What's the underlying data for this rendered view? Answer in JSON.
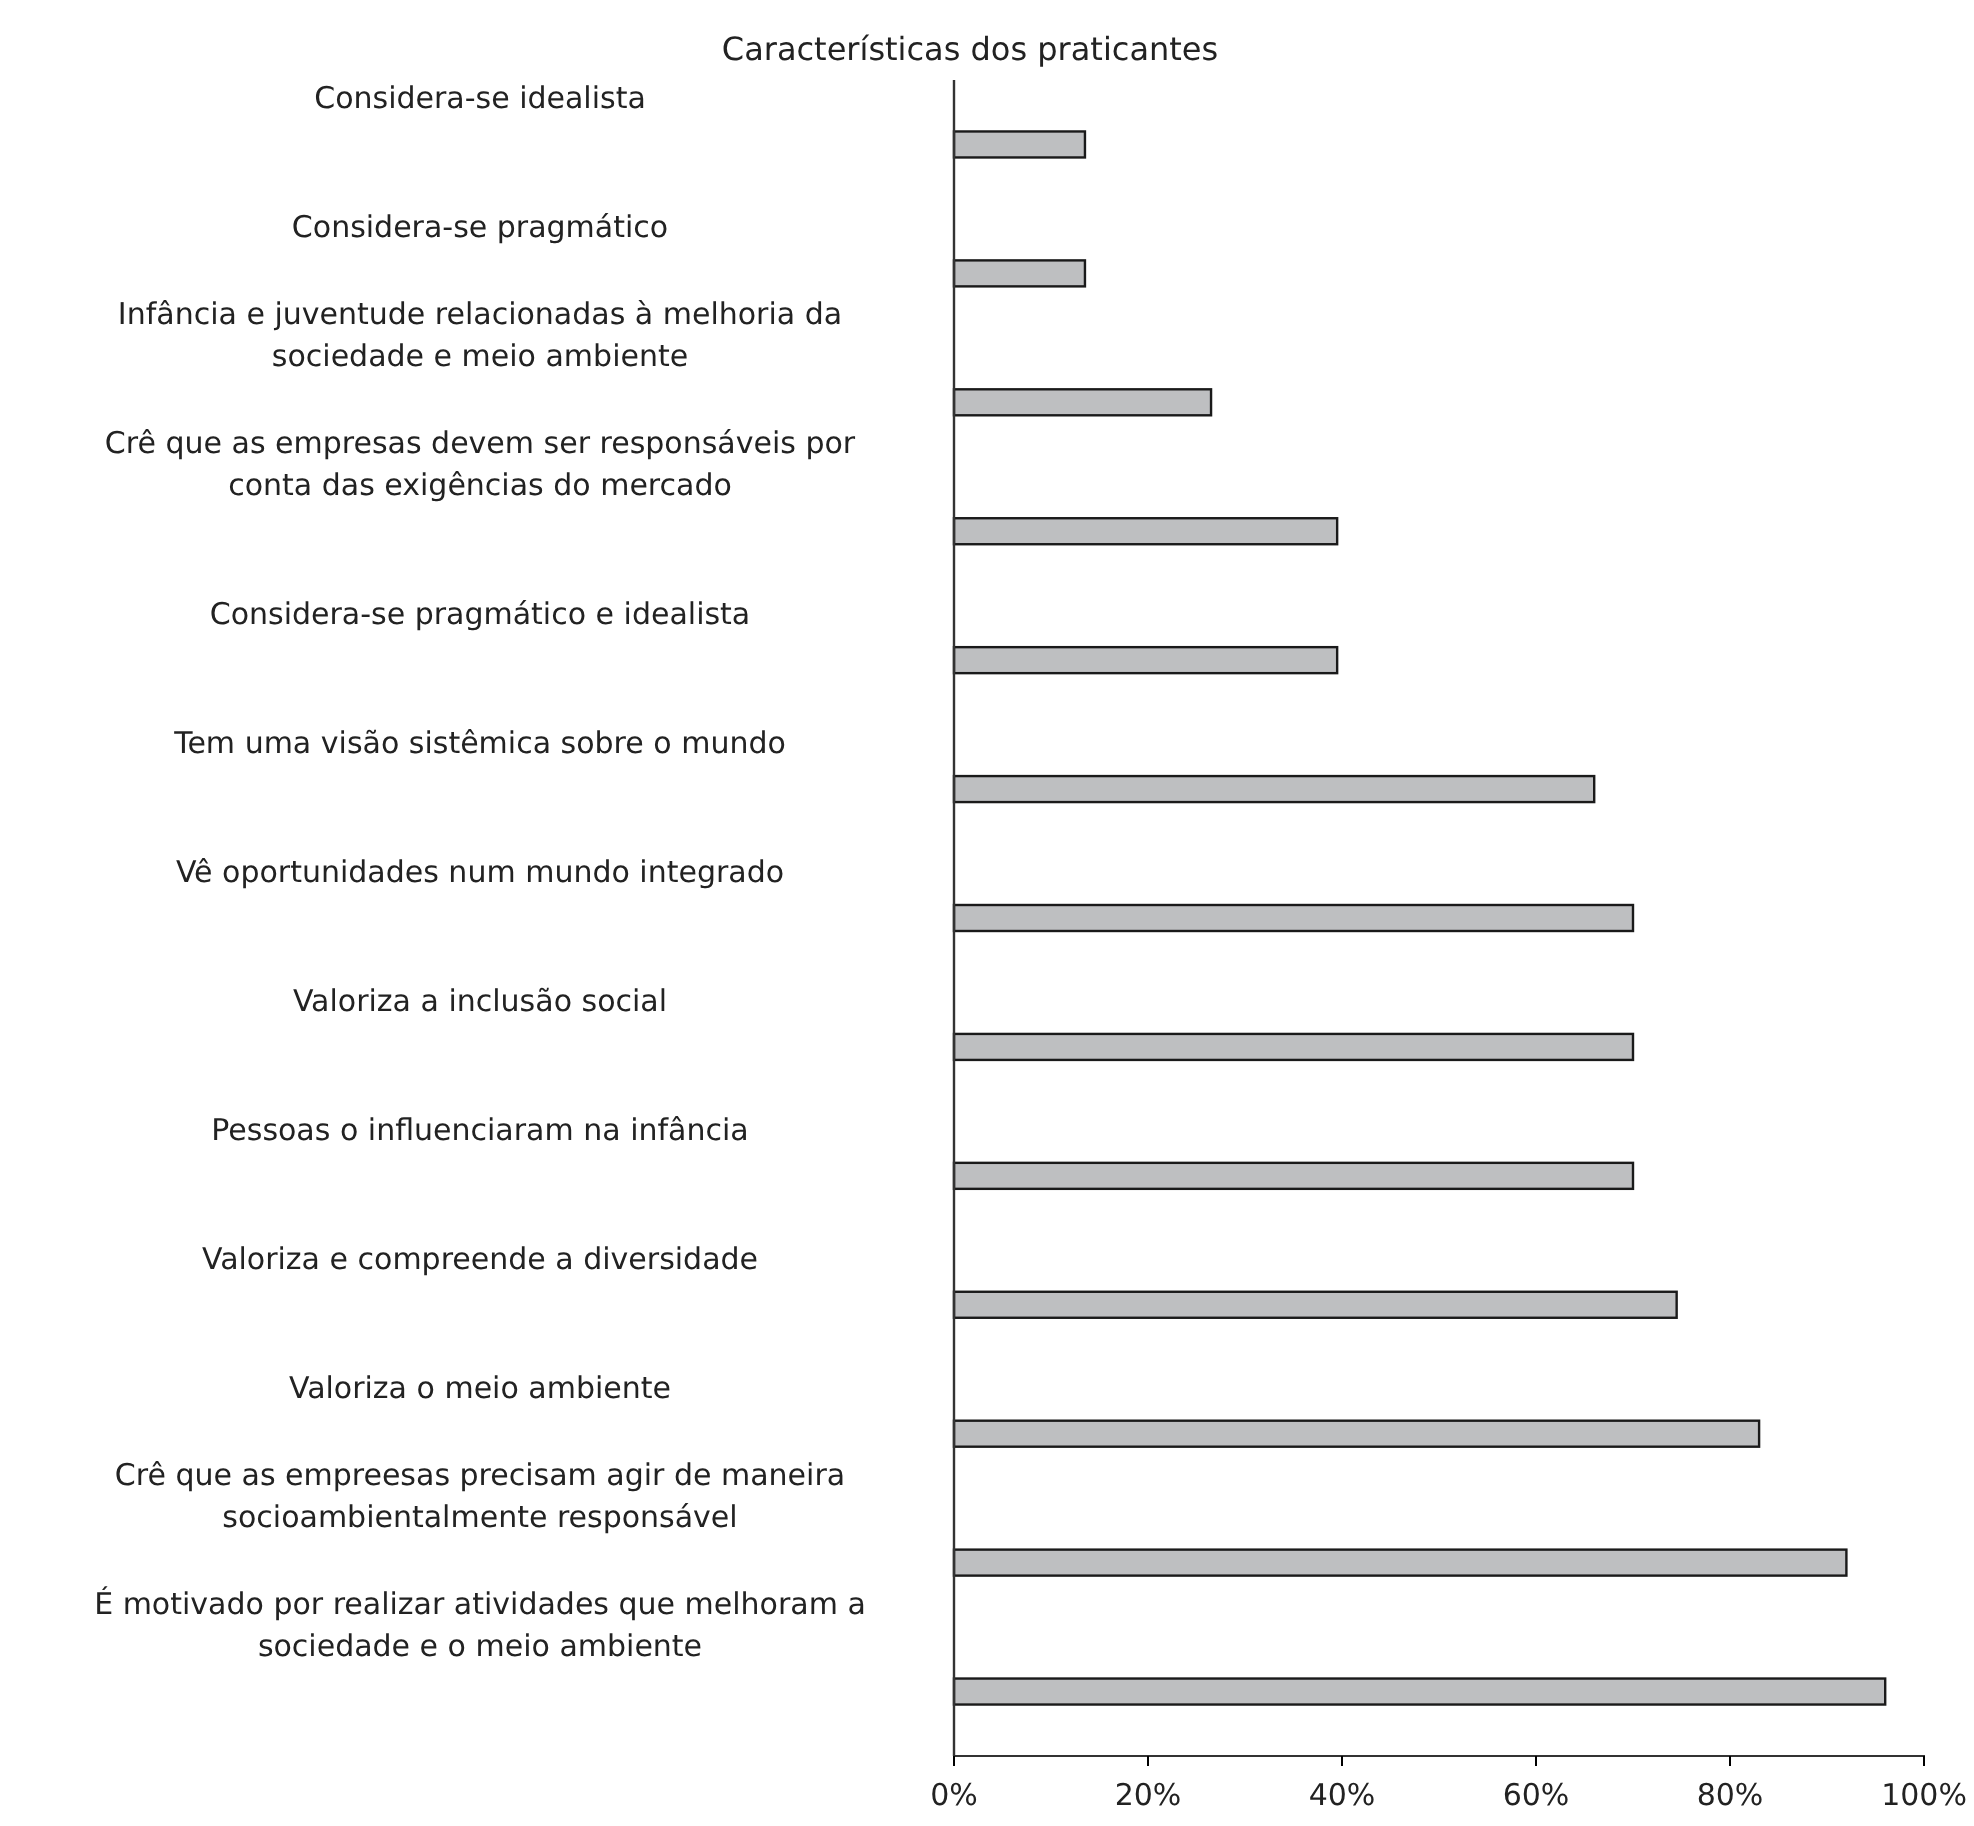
{
  "chart_data": {
    "type": "bar",
    "orientation": "horizontal",
    "title": "Características dos praticantes",
    "categories": [
      "Considera-se idealista",
      "Considera-se pragmático",
      "Infância e juventude relacionadas à melhoria da sociedade e meio ambiente",
      "Crê que as empresas devem ser responsáveis por conta das exigências do mercado",
      "Considera-se pragmático e idealista",
      "Tem uma visão sistêmica sobre o mundo",
      "Vê oportunidades num mundo integrado",
      "Valoriza a inclusão social",
      "Pessoas o influenciaram na infância",
      "Valoriza e compreende a diversidade",
      "Valoriza o meio ambiente",
      "Crê que as empreesas precisam agir de maneira socioambientalmente responsável",
      "É motivado por realizar atividades que melhoram a sociedade e o meio ambiente"
    ],
    "values": [
      13.5,
      13.5,
      26.5,
      39.5,
      39.5,
      66,
      70,
      70,
      70,
      74.5,
      83,
      92,
      96
    ],
    "color": "#bebfc1",
    "xlim": [
      0,
      100
    ],
    "xticks": [
      {
        "value": 0,
        "label": "0%"
      },
      {
        "value": 20,
        "label": "20%"
      },
      {
        "value": 40,
        "label": "40%"
      },
      {
        "value": 60,
        "label": "60%"
      },
      {
        "value": 80,
        "label": "80%"
      },
      {
        "value": 100,
        "label": "100%"
      }
    ],
    "grid": false
  }
}
